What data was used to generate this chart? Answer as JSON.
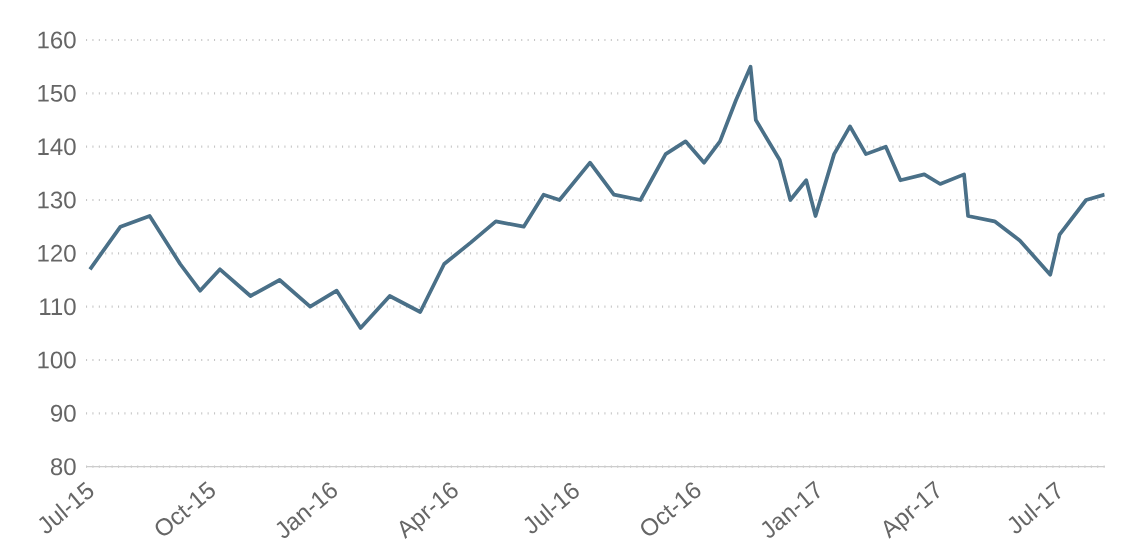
{
  "chart_data": {
    "type": "line",
    "x": [
      "2015-07-04",
      "2015-07-27",
      "2015-08-18",
      "2015-09-10",
      "2015-09-25",
      "2015-10-10",
      "2015-11-02",
      "2015-11-24",
      "2015-12-17",
      "2016-01-06",
      "2016-01-24",
      "2016-02-15",
      "2016-03-09",
      "2016-03-27",
      "2016-04-16",
      "2016-05-05",
      "2016-05-26",
      "2016-06-10",
      "2016-06-22",
      "2016-07-15",
      "2016-08-02",
      "2016-08-22",
      "2016-09-10",
      "2016-09-25",
      "2016-10-09",
      "2016-10-21",
      "2016-11-02",
      "2016-11-13",
      "2016-11-17",
      "2016-12-05",
      "2016-12-13",
      "2016-12-25",
      "2017-01-01",
      "2017-01-15",
      "2017-01-27",
      "2017-02-08",
      "2017-02-23",
      "2017-03-06",
      "2017-03-24",
      "2017-04-05",
      "2017-04-23",
      "2017-04-26",
      "2017-05-16",
      "2017-06-04",
      "2017-06-27",
      "2017-07-04",
      "2017-07-24",
      "2017-08-07"
    ],
    "series": [
      {
        "color": "#4a7088",
        "values": [
          117,
          125,
          127,
          118,
          113,
          117,
          112,
          115,
          110,
          113,
          106,
          112,
          109,
          118,
          122,
          126,
          125,
          131,
          130,
          137,
          131,
          130,
          138.6,
          141,
          137,
          141,
          148.7,
          155,
          145,
          137.5,
          130,
          133.7,
          127,
          138.6,
          143.8,
          138.6,
          140,
          133.7,
          134.8,
          133,
          134.8,
          127,
          126,
          122.4,
          116,
          123.5,
          130,
          131
        ]
      }
    ],
    "xlim": [
      "2015-07-01",
      "2017-08-07"
    ],
    "xticks": [
      {
        "value": "2015-07-01",
        "label": "Jul-15"
      },
      {
        "value": "2015-10-01",
        "label": "Oct-15"
      },
      {
        "value": "2016-01-01",
        "label": "Jan-16"
      },
      {
        "value": "2016-04-01",
        "label": "Apr-16"
      },
      {
        "value": "2016-07-01",
        "label": "Jul-16"
      },
      {
        "value": "2016-10-01",
        "label": "Oct-16"
      },
      {
        "value": "2017-01-01",
        "label": "Jan-17"
      },
      {
        "value": "2017-04-01",
        "label": "Apr-17"
      },
      {
        "value": "2017-07-01",
        "label": "Jul-17"
      }
    ],
    "ylim": [
      80,
      160
    ],
    "yticks": [
      80,
      90,
      100,
      110,
      120,
      130,
      140,
      150,
      160
    ],
    "grid": "y",
    "marker": "none",
    "line_style": "solid"
  }
}
